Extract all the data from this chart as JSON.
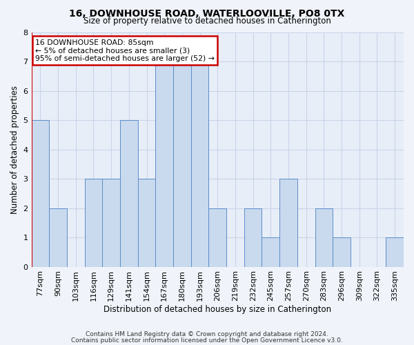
{
  "title1": "16, DOWNHOUSE ROAD, WATERLOOVILLE, PO8 0TX",
  "title2": "Size of property relative to detached houses in Catherington",
  "xlabel": "Distribution of detached houses by size in Catherington",
  "ylabel": "Number of detached properties",
  "categories": [
    "77sqm",
    "90sqm",
    "103sqm",
    "116sqm",
    "129sqm",
    "141sqm",
    "154sqm",
    "167sqm",
    "180sqm",
    "193sqm",
    "206sqm",
    "219sqm",
    "232sqm",
    "245sqm",
    "257sqm",
    "270sqm",
    "283sqm",
    "296sqm",
    "309sqm",
    "322sqm",
    "335sqm"
  ],
  "values": [
    5,
    2,
    0,
    3,
    3,
    5,
    3,
    7,
    7,
    7,
    2,
    0,
    2,
    1,
    3,
    0,
    2,
    1,
    0,
    0,
    1
  ],
  "bar_color": "#c9d9ee",
  "bar_edge_color": "#5b8cc8",
  "highlight_line_color": "#cc0000",
  "annotation_text": "16 DOWNHOUSE ROAD: 85sqm\n← 5% of detached houses are smaller (3)\n95% of semi-detached houses are larger (52) →",
  "annotation_box_color": "#ffffff",
  "annotation_box_edge": "#cc0000",
  "footer1": "Contains HM Land Registry data © Crown copyright and database right 2024.",
  "footer2": "Contains public sector information licensed under the Open Government Licence v3.0.",
  "ylim": [
    0,
    8
  ],
  "yticks": [
    0,
    1,
    2,
    3,
    4,
    5,
    6,
    7,
    8
  ],
  "grid_color": "#c8d4e8",
  "background_color": "#f0f4fa",
  "plot_bg_color": "#e8eef8"
}
